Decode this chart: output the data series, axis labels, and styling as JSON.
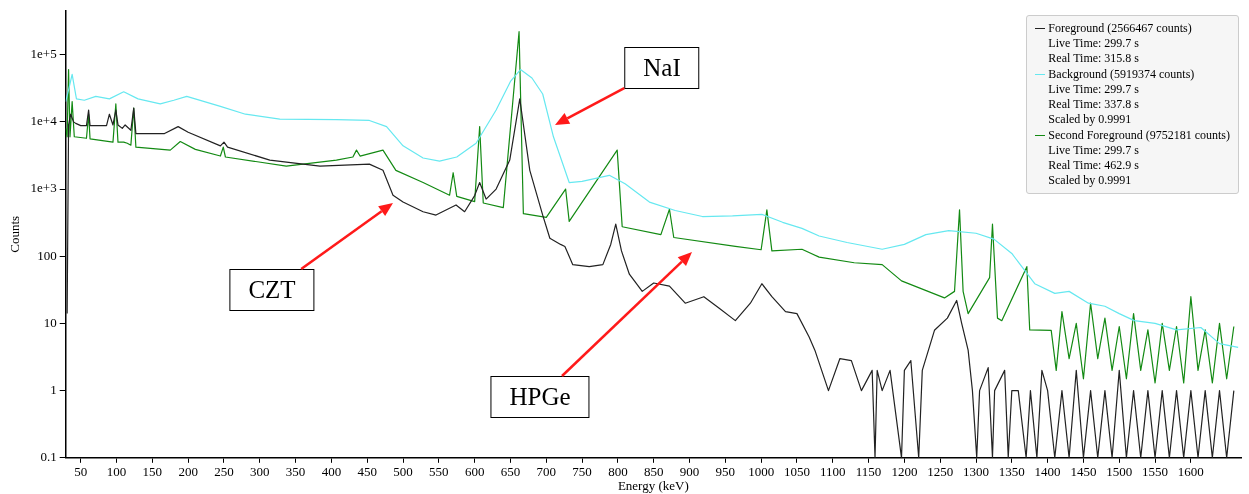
{
  "chart_data": {
    "type": "line",
    "xlabel": "Energy (keV)",
    "ylabel": "Counts",
    "log": "y",
    "grid": false,
    "legend": "top right",
    "marker": "none",
    "line_style": "solid",
    "xlim": [
      29,
      1670
    ],
    "xticks": [
      50,
      100,
      150,
      200,
      250,
      300,
      350,
      400,
      450,
      500,
      550,
      600,
      650,
      700,
      750,
      800,
      850,
      900,
      950,
      1000,
      1050,
      1100,
      1150,
      1200,
      1250,
      1300,
      1350,
      1400,
      1450,
      1500,
      1550,
      1600
    ],
    "ylim": [
      0.1,
      450000
    ],
    "yticks": [
      0.1,
      1,
      10,
      100,
      {
        "value": 1000,
        "label": "1e+3"
      },
      {
        "value": 10000,
        "label": "1e+4"
      },
      {
        "value": 100000,
        "label": "1e+5"
      }
    ],
    "series": [
      {
        "name": "Foreground (2566467 counts)\nLive Time: 299.7 s\nReal Time: 315.8 s",
        "color": "#222222",
        "x": [
          31,
          33,
          36,
          40,
          43,
          50,
          58,
          61,
          63,
          86,
          90,
          95,
          99,
          102,
          108,
          112,
          120,
          124,
          127,
          167,
          186,
          200,
          245,
          250,
          255,
          314,
          384,
          453,
          472,
          486,
          500,
          528,
          546,
          574,
          586,
          600,
          607,
          616,
          630,
          649,
          663,
          677,
          695,
          705,
          720,
          726,
          737,
          760,
          779,
          790,
          797,
          805,
          816,
          834,
          850,
          872,
          894,
          920,
          941,
          964,
          985,
          1001,
          1015,
          1034,
          1050,
          1067,
          1075,
          1094,
          1110,
          1126,
          1140,
          1155,
          1159,
          1162,
          1169,
          1180,
          1196,
          1200,
          1209,
          1220,
          1225,
          1242,
          1260,
          1273,
          1280,
          1289,
          1295,
          1301,
          1305,
          1317,
          1323,
          1326,
          1340,
          1345,
          1350,
          1359,
          1370,
          1376,
          1385,
          1392,
          1400,
          1410,
          1420,
          1430,
          1440,
          1450,
          1460,
          1470,
          1480,
          1490,
          1500,
          1510,
          1520,
          1530,
          1540,
          1550,
          1560,
          1570,
          1580,
          1590,
          1600,
          1610,
          1620,
          1630,
          1640,
          1650,
          1660
        ],
        "values": [
          14,
          9000,
          13000,
          10000,
          9500,
          8800,
          8800,
          15000,
          8800,
          8800,
          13000,
          9000,
          15000,
          9000,
          8000,
          9000,
          7500,
          16000,
          6700,
          6700,
          8500,
          7000,
          4400,
          5000,
          4200,
          2700,
          2200,
          2350,
          1900,
          810,
          640,
          460,
          410,
          580,
          460,
          800,
          1250,
          710,
          1000,
          2700,
          22000,
          1900,
          410,
          185,
          150,
          140,
          75,
          70,
          75,
          150,
          300,
          120,
          54,
          30,
          40,
          36,
          20,
          25,
          17,
          11,
          20,
          39,
          25,
          15,
          14,
          6.3,
          4,
          1,
          3,
          2.8,
          1,
          2,
          0.1,
          2,
          1,
          2,
          0.1,
          2,
          2.8,
          0.1,
          2,
          7.9,
          12,
          22,
          10,
          4,
          1,
          0.1,
          1,
          2.2,
          0.1,
          1,
          2,
          0.1,
          1,
          1,
          0.1,
          1,
          0.1,
          2,
          1,
          0.1,
          1,
          0.1,
          2,
          0.1,
          1,
          0.1,
          1,
          0.1,
          2,
          0.1,
          1,
          0.1,
          1,
          0.1,
          1,
          0.1,
          1,
          0.1,
          1,
          0.1,
          1,
          0.1,
          1,
          0.1,
          1
        ]
      },
      {
        "name": "Background (5919374 counts)\nLive Time: 299.7 s\nReal Time: 337.8 s\nScaled by 0.9991",
        "color": "#66e8f0",
        "x": [
          29,
          33,
          38,
          44,
          55,
          71,
          90,
          110,
          130,
          161,
          180,
          198,
          245,
          280,
          328,
          407,
          453,
          477,
          500,
          528,
          551,
          575,
          602,
          630,
          650,
          664,
          680,
          695,
          710,
          732,
          750,
          788,
          810,
          844,
          880,
          918,
          960,
          1001,
          1030,
          1057,
          1081,
          1120,
          1169,
          1200,
          1230,
          1262,
          1300,
          1325,
          1350,
          1382,
          1410,
          1430,
          1457,
          1480,
          1500,
          1521,
          1550,
          1580,
          1614,
          1640,
          1666
        ],
        "values": [
          20000,
          30000,
          51000,
          22000,
          21000,
          24000,
          22000,
          28000,
          22000,
          18500,
          21000,
          24000,
          17000,
          13000,
          11000,
          10800,
          10500,
          8500,
          4400,
          2900,
          2600,
          3000,
          4800,
          15000,
          40000,
          60000,
          45000,
          26000,
          6000,
          1250,
          1300,
          1600,
          1200,
          640,
          480,
          390,
          400,
          420,
          320,
          260,
          200,
          160,
          127,
          150,
          210,
          240,
          220,
          180,
          110,
          39,
          28,
          30,
          20,
          18,
          14,
          11,
          10,
          8,
          8.7,
          5,
          4.4
        ]
      },
      {
        "name": "Second Foreground (9752181 counts)\nLive Time: 299.7 s\nReal Time: 462.9 s\nScaled by 0.9991",
        "color": "#138a13",
        "x": [
          29,
          31,
          33,
          35,
          38,
          41,
          58,
          61,
          63,
          95,
          99,
          102,
          110,
          115,
          120,
          124,
          127,
          175,
          189,
          210,
          245,
          249,
          252,
          337,
          407,
          430,
          435,
          440,
          472,
          490,
          528,
          565,
          570,
          575,
          600,
          607,
          612,
          640,
          662,
          668,
          700,
          727,
          732,
          799,
          806,
          860,
          872,
          878,
          964,
          1000,
          1008,
          1015,
          1057,
          1081,
          1130,
          1169,
          1196,
          1256,
          1270,
          1277,
          1282,
          1289,
          1319,
          1323,
          1330,
          1336,
          1371,
          1375,
          1405,
          1412,
          1420,
          1430,
          1440,
          1450,
          1460,
          1470,
          1480,
          1490,
          1500,
          1510,
          1520,
          1530,
          1540,
          1550,
          1560,
          1570,
          1580,
          1590,
          1600,
          1610,
          1620,
          1630,
          1640,
          1650,
          1660
        ],
        "values": [
          8000,
          6000,
          60000,
          6000,
          20000,
          6000,
          5700,
          13000,
          5600,
          5000,
          18500,
          5000,
          5000,
          4800,
          4500,
          16000,
          4200,
          3800,
          5100,
          3900,
          3100,
          4200,
          3000,
          2200,
          2700,
          3000,
          3800,
          3100,
          3800,
          1900,
          1250,
          810,
          1750,
          780,
          650,
          8500,
          620,
          530,
          220000,
          430,
          380,
          1000,
          330,
          3800,
          275,
          210,
          500,
          190,
          140,
          125,
          490,
          120,
          127,
          97,
          80,
          75,
          43,
          24,
          30,
          490,
          30,
          14,
          48,
          300,
          12,
          11,
          70,
          8,
          7.9,
          2,
          15,
          3,
          10,
          1.5,
          20,
          3,
          12,
          2,
          9,
          1.5,
          14,
          2,
          8,
          1.3,
          10,
          2,
          9,
          1.3,
          25,
          2,
          8,
          1.3,
          10,
          1.5,
          9
        ]
      }
    ],
    "annotations": [
      "NaI",
      "CZT",
      "HPGe"
    ]
  }
}
